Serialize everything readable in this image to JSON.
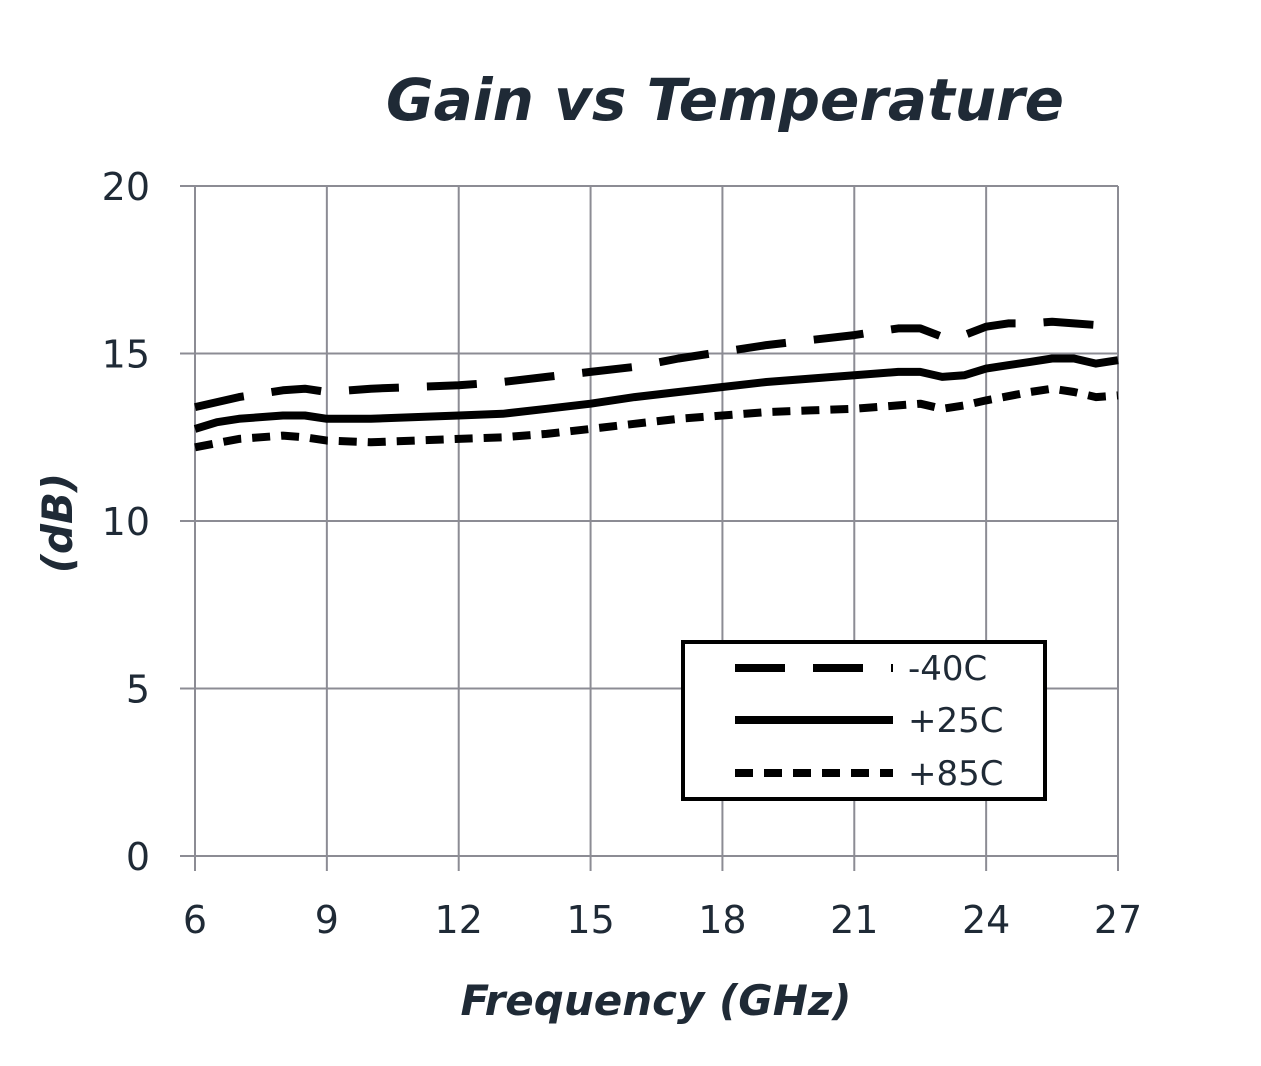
{
  "chart_data": {
    "type": "line",
    "title": "Gain vs Temperature",
    "xlabel": "Frequency (GHz)",
    "ylabel": "(dB)",
    "xlim": [
      6,
      27
    ],
    "ylim": [
      0,
      20
    ],
    "xticks": [
      6,
      9,
      12,
      15,
      18,
      21,
      24,
      27
    ],
    "yticks": [
      0,
      5,
      10,
      15,
      20
    ],
    "grid": true,
    "legend_position": "bottom-right",
    "series": [
      {
        "name": "-40C",
        "style": "long-dash",
        "x": [
          6,
          7,
          8,
          8.5,
          9,
          10,
          11,
          12,
          13,
          14,
          15,
          16,
          17,
          18,
          19,
          20,
          21,
          21.5,
          22,
          22.5,
          23,
          23.5,
          24,
          24.5,
          25,
          25.5,
          26,
          26.5,
          27
        ],
        "y": [
          13.4,
          13.7,
          13.9,
          13.95,
          13.85,
          13.95,
          14.0,
          14.05,
          14.15,
          14.3,
          14.45,
          14.6,
          14.85,
          15.05,
          15.25,
          15.4,
          15.55,
          15.65,
          15.75,
          15.75,
          15.5,
          15.55,
          15.8,
          15.9,
          15.9,
          15.95,
          15.9,
          15.85,
          16.05
        ]
      },
      {
        "name": "+25C",
        "style": "solid",
        "x": [
          6,
          6.5,
          7,
          8,
          8.5,
          9,
          10,
          11,
          12,
          13,
          14,
          15,
          16,
          17,
          18,
          19,
          20,
          21,
          22,
          22.5,
          23,
          23.5,
          24,
          24.5,
          25,
          25.5,
          26,
          26.5,
          27
        ],
        "y": [
          12.75,
          12.95,
          13.05,
          13.15,
          13.15,
          13.05,
          13.05,
          13.1,
          13.15,
          13.2,
          13.35,
          13.5,
          13.7,
          13.85,
          14.0,
          14.15,
          14.25,
          14.35,
          14.45,
          14.45,
          14.3,
          14.35,
          14.55,
          14.65,
          14.75,
          14.85,
          14.85,
          14.7,
          14.8
        ]
      },
      {
        "name": "+85C",
        "style": "short-dash",
        "x": [
          6,
          7,
          8,
          8.5,
          9,
          10,
          11,
          12,
          13,
          14,
          15,
          16,
          17,
          18,
          19,
          20,
          21,
          22,
          22.5,
          23,
          23.5,
          24,
          25,
          25.5,
          26,
          26.5,
          27
        ],
        "y": [
          12.2,
          12.45,
          12.55,
          12.5,
          12.4,
          12.35,
          12.4,
          12.45,
          12.5,
          12.6,
          12.75,
          12.9,
          13.05,
          13.15,
          13.25,
          13.3,
          13.35,
          13.45,
          13.5,
          13.35,
          13.45,
          13.6,
          13.85,
          13.95,
          13.85,
          13.7,
          13.75
        ]
      }
    ]
  }
}
